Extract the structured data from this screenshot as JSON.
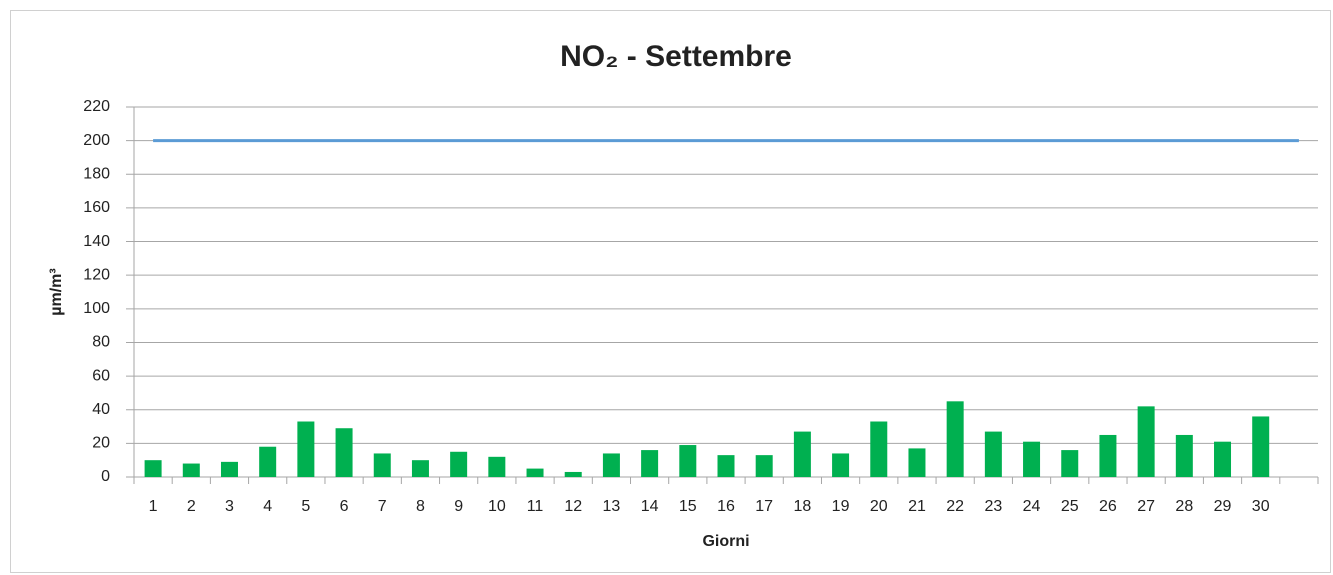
{
  "chart_data": {
    "type": "bar",
    "title": "NO₂ - Settembre",
    "x_label": "Giorni",
    "y_label": "µm/m³",
    "categories": [
      "1",
      "2",
      "3",
      "4",
      "5",
      "6",
      "7",
      "8",
      "9",
      "10",
      "11",
      "12",
      "13",
      "14",
      "15",
      "16",
      "17",
      "18",
      "19",
      "20",
      "21",
      "22",
      "23",
      "24",
      "25",
      "26",
      "27",
      "28",
      "29",
      "30",
      null
    ],
    "series": [
      {
        "type": "bar",
        "color": "#00b050",
        "values": [
          10,
          8,
          9,
          18,
          33,
          29,
          14,
          10,
          15,
          12,
          5,
          3,
          14,
          16,
          19,
          13,
          13,
          27,
          14,
          33,
          17,
          45,
          27,
          21,
          16,
          25,
          42,
          25,
          21,
          36,
          null
        ]
      },
      {
        "type": "line",
        "color": "#5b9bd5",
        "values": [
          200,
          200,
          200,
          200,
          200,
          200,
          200,
          200,
          200,
          200,
          200,
          200,
          200,
          200,
          200,
          200,
          200,
          200,
          200,
          200,
          200,
          200,
          200,
          200,
          200,
          200,
          200,
          200,
          200,
          200,
          200
        ]
      }
    ],
    "ylim": [
      0,
      220
    ],
    "yticks": [
      0,
      20,
      40,
      60,
      80,
      100,
      120,
      140,
      160,
      180,
      200,
      220
    ],
    "grid": true
  }
}
